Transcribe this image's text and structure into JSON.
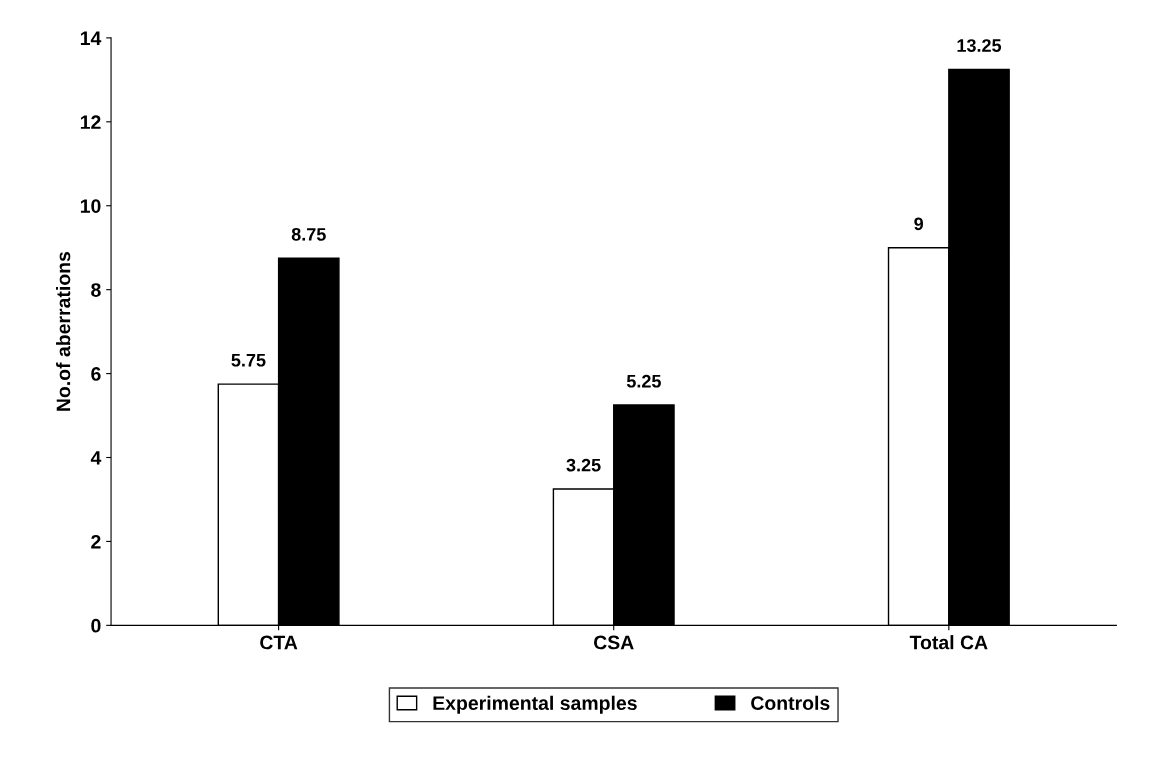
{
  "chart_data": {
    "type": "bar",
    "ylabel": "No.of aberrations",
    "categories": [
      "CTA",
      "CSA",
      "Total CA"
    ],
    "series": [
      {
        "name": "Experimental samples",
        "color": "#ffffff",
        "values": [
          5.75,
          3.25,
          9
        ]
      },
      {
        "name": "Controls",
        "color": "#000000",
        "values": [
          8.75,
          5.25,
          13.25
        ]
      }
    ],
    "ylim": [
      0,
      14
    ],
    "yticks": [
      0,
      2,
      4,
      6,
      8,
      10,
      12,
      14
    ],
    "data_labels": true,
    "legend": "bottom",
    "grid": false
  }
}
